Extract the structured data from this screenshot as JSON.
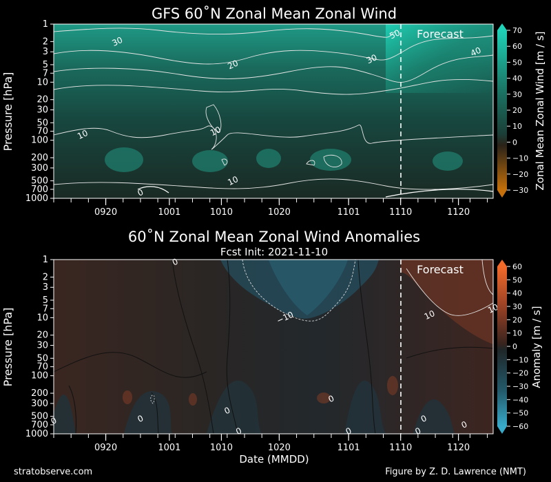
{
  "chart_data": [
    {
      "type": "heatmap",
      "title": "GFS 60˚N Zonal Mean Zonal Wind",
      "subtitle": "",
      "ylabel": "Pressure [hPa]",
      "xlabel": "",
      "y_ticks": [
        "1",
        "2",
        "3",
        "5",
        "7",
        "10",
        "20",
        "30",
        "50",
        "70",
        "100",
        "200",
        "300",
        "500",
        "700",
        "1000"
      ],
      "x_ticks": [
        "0920",
        "1001",
        "1010",
        "1020",
        "1101",
        "1110",
        "1120"
      ],
      "forecast_label": "Forecast",
      "forecast_date": "1110",
      "contour_labels": [
        {
          "text": "30",
          "pressure": 2,
          "date": "0922"
        },
        {
          "text": "50",
          "pressure": 1.5,
          "date": "1109"
        },
        {
          "text": "20",
          "pressure": 5,
          "date": "1012"
        },
        {
          "text": "30",
          "pressure": 4,
          "date": "1105"
        },
        {
          "text": "40",
          "pressure": 3,
          "date": "1123"
        },
        {
          "text": "10",
          "pressure": 70,
          "date": "1009"
        },
        {
          "text": "10",
          "pressure": 80,
          "date": "0916"
        },
        {
          "text": "10",
          "pressure": 500,
          "date": "1012"
        },
        {
          "text": "0",
          "pressure": 800,
          "date": "0926"
        }
      ],
      "colorbar": {
        "label": "Zonal Mean Zonal Wind [m / s]",
        "ticks": [
          "70",
          "60",
          "50",
          "40",
          "30",
          "20",
          "10",
          "0",
          "−10",
          "−20",
          "−30"
        ],
        "range": [
          -30,
          70
        ],
        "colors": {
          "high": "#1fd1b6",
          "mid": "#1b5a4e",
          "zero": "#1c2622",
          "low": "#c5700a"
        }
      }
    },
    {
      "type": "heatmap",
      "title": "60˚N Zonal Mean Zonal Wind Anomalies",
      "subtitle": "Fcst Init: 2021-11-10",
      "ylabel": "Pressure [hPa]",
      "xlabel": "Date (MMDD)",
      "y_ticks": [
        "1",
        "2",
        "3",
        "5",
        "7",
        "10",
        "20",
        "30",
        "50",
        "70",
        "100",
        "200",
        "300",
        "500",
        "700",
        "1000"
      ],
      "x_ticks": [
        "0920",
        "1001",
        "1010",
        "1020",
        "1101",
        "1110",
        "1120"
      ],
      "forecast_label": "Forecast",
      "forecast_date": "1110",
      "contour_labels": [
        {
          "text": "0",
          "pressure": 1.1,
          "date": "1002"
        },
        {
          "text": "−10",
          "pressure": 10,
          "date": "1021"
        },
        {
          "text": "10",
          "pressure": 9,
          "date": "1115"
        },
        {
          "text": "10",
          "pressure": 7,
          "date": "1126"
        },
        {
          "text": "0",
          "pressure": 250,
          "date": "1029"
        },
        {
          "text": "0",
          "pressure": 400,
          "date": "1011"
        },
        {
          "text": "0",
          "pressure": 550,
          "date": "0926"
        },
        {
          "text": "0",
          "pressure": 600,
          "date": "0911"
        },
        {
          "text": "0",
          "pressure": 550,
          "date": "1114"
        },
        {
          "text": "0",
          "pressure": 900,
          "date": "1013"
        },
        {
          "text": "0",
          "pressure": 900,
          "date": "1101"
        },
        {
          "text": "0",
          "pressure": 900,
          "date": "1113"
        },
        {
          "text": "0",
          "pressure": 700,
          "date": "1121"
        }
      ],
      "colorbar": {
        "label": "Anomaly [m / s]",
        "ticks": [
          "60",
          "50",
          "40",
          "30",
          "20",
          "10",
          "0",
          "−10",
          "−20",
          "−30",
          "−40",
          "−50",
          "−60"
        ],
        "range": [
          -60,
          60
        ],
        "colors": {
          "high": "#f26a2a",
          "mid": "#5a2f22",
          "zero": "#1f1c1c",
          "low": "#38a9c9"
        }
      }
    }
  ],
  "footer": {
    "left": "stratobserve.com",
    "right": "Figure by Z. D. Lawrence (NMT)"
  },
  "colors": {
    "background": "#000000",
    "forecast_line": "#ffffff",
    "contour": "#e6e6e6"
  }
}
